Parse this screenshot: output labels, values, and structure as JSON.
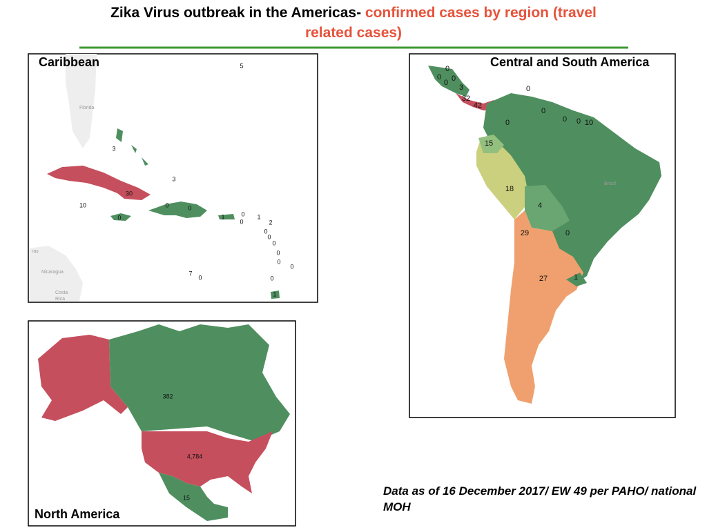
{
  "title": {
    "text": "Zika Virus outbreak in the Americas- ",
    "highlight": "confirmed cases by region (travel related cases)"
  },
  "maps": [
    {
      "name": "Caribbean",
      "labels": [
        "5",
        "3",
        "3",
        "30",
        "10",
        "0",
        "0",
        "0",
        "1",
        "0",
        "0",
        "1",
        "2",
        "0",
        "0",
        "0",
        "0",
        "0",
        "0",
        "0",
        "7",
        "0",
        "1"
      ],
      "basemap_labels": [
        "Florida",
        "ras",
        "Nicaragua",
        "Costa",
        "Rica"
      ]
    },
    {
      "name": "Central and South America",
      "labels": [
        "0",
        "0",
        "0",
        "0",
        "3",
        "32",
        "42",
        "0",
        "0",
        "0",
        "0",
        "10",
        "0",
        "15",
        "18",
        "4",
        "29",
        "0",
        "27",
        "1"
      ],
      "basemap_labels": [
        "Brazil"
      ]
    },
    {
      "name": "North America",
      "labels": [
        "382",
        "4,784",
        "15"
      ],
      "basemap_labels": []
    }
  ],
  "footnote": "Data as of 16 December 2017/ EW 49 per PAHO/ national MOH"
}
